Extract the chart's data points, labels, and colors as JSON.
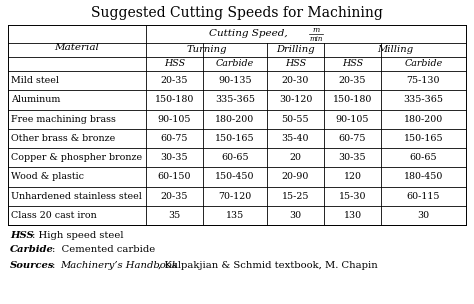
{
  "title": "Suggested Cutting Speeds for Machining",
  "rows": [
    [
      "Mild steel",
      "20-35",
      "90-135",
      "20-30",
      "20-35",
      "75-130"
    ],
    [
      "Aluminum",
      "150-180",
      "335-365",
      "30-120",
      "150-180",
      "335-365"
    ],
    [
      "Free machining brass",
      "90-105",
      "180-200",
      "50-55",
      "90-105",
      "180-200"
    ],
    [
      "Other brass & bronze",
      "60-75",
      "150-165",
      "35-40",
      "60-75",
      "150-165"
    ],
    [
      "Copper & phospher bronze",
      "30-35",
      "60-65",
      "20",
      "30-35",
      "60-65"
    ],
    [
      "Wood & plastic",
      "60-150",
      "150-450",
      "20-90",
      "120",
      "180-450"
    ],
    [
      "Unhardened stainless steel",
      "20-35",
      "70-120",
      "15-25",
      "15-30",
      "60-115"
    ],
    [
      "Class 20 cast iron",
      "35",
      "135",
      "30",
      "130",
      "30"
    ]
  ]
}
